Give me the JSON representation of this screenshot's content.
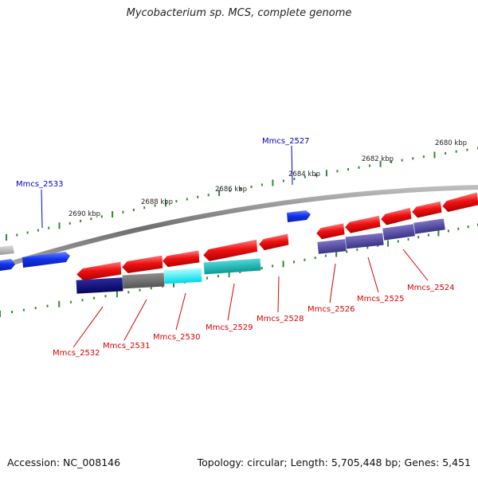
{
  "title": "Mycobacterium sp. MCS, complete genome",
  "footer": {
    "accession": "Accession: NC_008146",
    "summary": "Topology: circular; Length: 5,705,448 bp; Genes: 5,451"
  },
  "colors": {
    "backbone": "#7a7a7a",
    "tick": "#2e8b2e",
    "forward_label": "#0000cc",
    "reverse_label": "#cc0000",
    "red_gene": "#ee1111",
    "blue_gene": "#1133ee"
  },
  "scale_labels": [
    "2690 kbp",
    "2688 kbp",
    "2686 kbp",
    "2684 kbp",
    "2682 kbp",
    "2680 kbp"
  ],
  "forward_genes": [
    "Mmcs_2533",
    "Mmcs_2527"
  ],
  "reverse_genes": [
    "Mmcs_2532",
    "Mmcs_2531",
    "Mmcs_2530",
    "Mmcs_2529",
    "Mmcs_2528",
    "Mmcs_2526",
    "Mmcs_2525",
    "Mmcs_2524"
  ]
}
